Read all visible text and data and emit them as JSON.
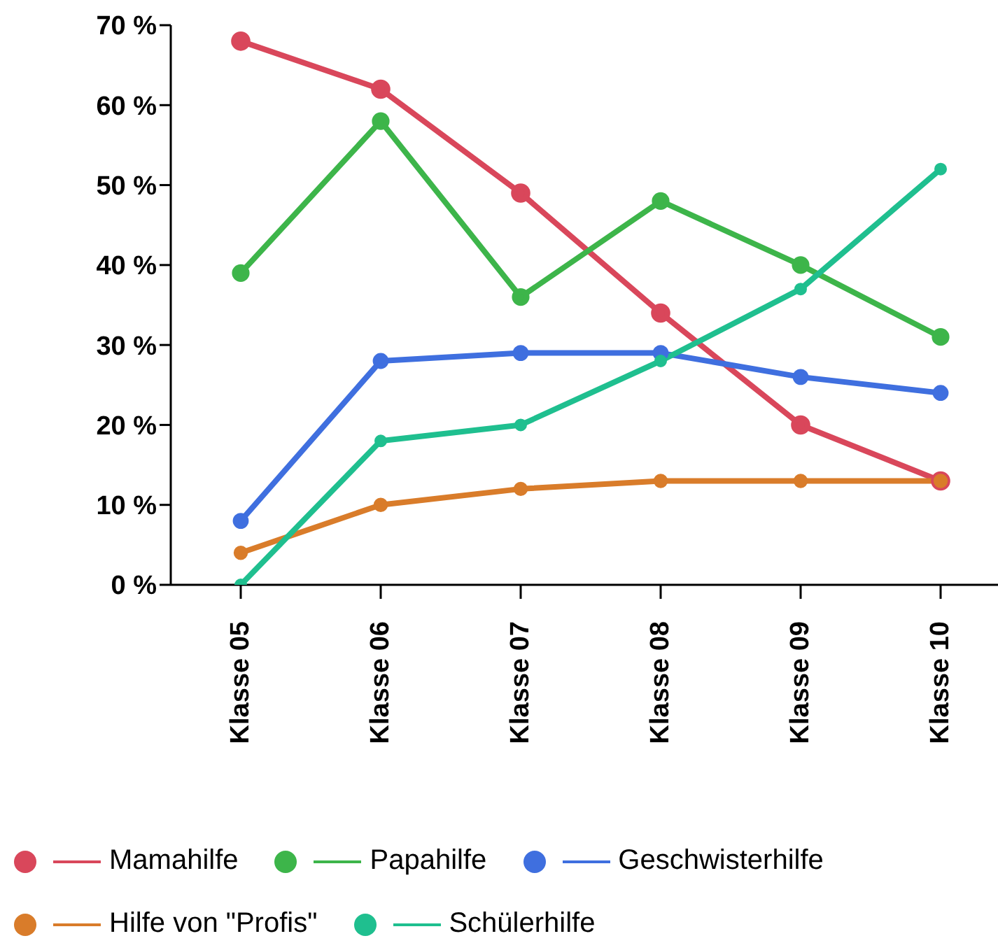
{
  "chart_data": {
    "type": "line",
    "categories": [
      "Klasse 05",
      "Klasse 06",
      "Klasse 07",
      "Klasse 08",
      "Klasse 09",
      "Klasse 10"
    ],
    "series": [
      {
        "name": "Mamahilfe",
        "color": "#d9475b",
        "values": [
          68,
          62,
          49,
          34,
          20,
          13
        ]
      },
      {
        "name": "Papahilfe",
        "color": "#3db54a",
        "values": [
          39,
          58,
          36,
          48,
          40,
          31
        ]
      },
      {
        "name": "Geschwisterhilfe",
        "color": "#3f6fdf",
        "values": [
          8,
          28,
          29,
          29,
          26,
          24
        ]
      },
      {
        "name": "Hilfe von \"Profis\"",
        "color": "#d97c2a",
        "values": [
          4,
          10,
          12,
          13,
          13,
          13
        ]
      },
      {
        "name": "Schülerhilfe",
        "color": "#1fbf8f",
        "values": [
          0,
          18,
          20,
          28,
          37,
          52
        ]
      }
    ],
    "ylim": [
      0,
      70
    ],
    "yticks": [
      {
        "value": 0,
        "label": "0 %"
      },
      {
        "value": 10,
        "label": "10 %"
      },
      {
        "value": 20,
        "label": "20 %"
      },
      {
        "value": 30,
        "label": "30 %"
      },
      {
        "value": 40,
        "label": "40 %"
      },
      {
        "value": 50,
        "label": "50 %"
      },
      {
        "value": 60,
        "label": "60 %"
      },
      {
        "value": 70,
        "label": "70 %"
      }
    ],
    "grid": false,
    "legend": "bottom",
    "marker": "circle",
    "line_style": "solid"
  }
}
